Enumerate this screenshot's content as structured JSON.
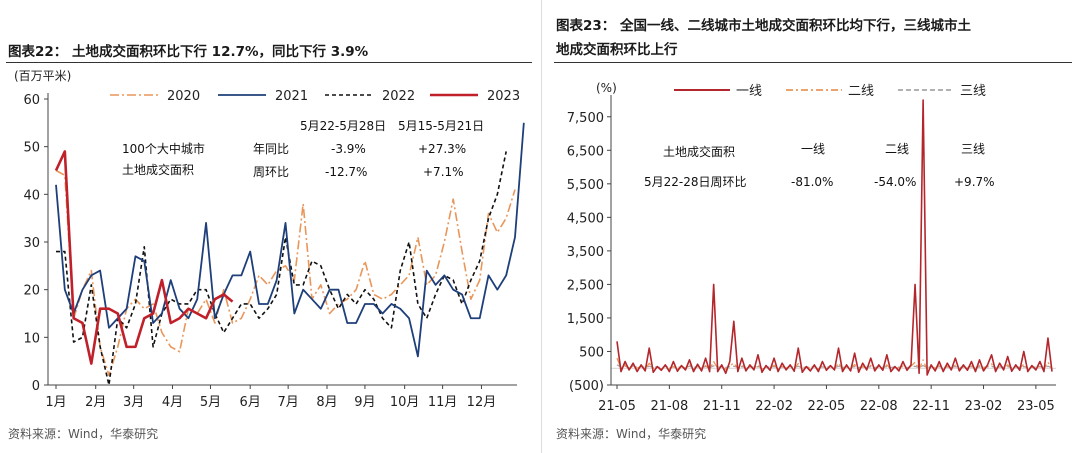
{
  "charts": [
    {
      "title": "图表22：  土地成交面积环比下行 12.7%，同比下行 3.9%",
      "source": "资料来源：Wind，华泰研究",
      "chart_data": {
        "type": "line",
        "ylabel": "(百万平米)",
        "ylim": [
          0,
          60
        ],
        "yticks": [
          0,
          10,
          20,
          30,
          40,
          50,
          60
        ],
        "x_tick_labels": [
          "1月",
          "2月",
          "3月",
          "4月",
          "5月",
          "6月",
          "7月",
          "8月",
          "9月",
          "10月",
          "11月",
          "12月"
        ],
        "x_index_range": [
          1,
          53
        ],
        "series": [
          {
            "name": "2020",
            "color": "#e9965a",
            "dash": "9,3,2,3",
            "width": 1.6,
            "values": [
              45,
              44,
              14,
              20,
              24,
              8,
              2,
              8,
              16,
              18,
              16,
              17,
              11,
              8,
              7,
              16,
              15,
              18,
              13,
              20,
              13,
              14,
              18,
              23,
              21,
              24,
              25,
              22,
              38,
              18,
              21,
              15,
              17,
              18,
              20,
              26,
              19,
              18,
              19,
              21,
              23,
              31,
              21,
              23,
              30,
              39,
              28,
              18,
              22,
              36,
              32,
              35,
              41
            ]
          },
          {
            "name": "2021",
            "color": "#1e3f7a",
            "dash": "",
            "width": 1.8,
            "values": [
              42,
              20,
              15,
              20,
              23,
              24,
              12,
              14,
              16,
              27,
              26,
              13,
              15,
              22,
              16,
              14,
              18,
              34,
              14,
              19,
              23,
              23,
              28,
              17,
              17,
              22,
              34,
              15,
              20,
              18,
              16,
              20,
              20,
              13,
              13,
              17,
              17,
              15,
              17,
              16,
              14,
              6,
              24,
              21,
              23,
              20,
              19,
              14,
              14,
              23,
              20,
              23,
              31,
              55
            ]
          },
          {
            "name": "2022",
            "color": "#111111",
            "dash": "4,3",
            "width": 1.6,
            "values": [
              28,
              28,
              9,
              10,
              21,
              8,
              0,
              14,
              12,
              17,
              29,
              8,
              15,
              18,
              17,
              17,
              20,
              20,
              15,
              11,
              14,
              17,
              17,
              14,
              16,
              19,
              31,
              21,
              21,
              26,
              25,
              20,
              16,
              19,
              17,
              20,
              18,
              14,
              12,
              24,
              30,
              17,
              14,
              19,
              23,
              22,
              17,
              22,
              26,
              35,
              40,
              49
            ]
          },
          {
            "name": "2023",
            "color": "#c0202a",
            "dash": "",
            "width": 2.6,
            "values": [
              45,
              49,
              14,
              13,
              4.5,
              16,
              16,
              15,
              8,
              8,
              14,
              15,
              22,
              13,
              14,
              16,
              15,
              14,
              18,
              19,
              17.5
            ]
          }
        ]
      },
      "table": {
        "row_label_1": "100个大中城市",
        "row_label_2": "土地成交面积",
        "header_1": "5月22-5月28日",
        "header_2": "5月15-5月21日",
        "rows": [
          {
            "label": "年同比",
            "v1": "-3.9%",
            "v2": "+27.3%"
          },
          {
            "label": "周环比",
            "v1": "-12.7%",
            "v2": "+7.1%"
          }
        ]
      }
    },
    {
      "title_line1": "图表23：  全国一线、二线城市土地成交面积环比均下行，三线城市土",
      "title_line2": "地成交面积环比上行",
      "source": "资料来源：Wind，华泰研究",
      "chart_data": {
        "type": "line",
        "ylabel": "(%)",
        "ylim": [
          -500,
          8000
        ],
        "yticks": [
          -500,
          500,
          1500,
          2500,
          3500,
          4500,
          5500,
          6500,
          7500
        ],
        "ytick_labels": [
          "(500)",
          "500",
          "1,500",
          "2,500",
          "3,500",
          "4,500",
          "5,500",
          "6,500",
          "7,500"
        ],
        "x_tick_labels": [
          "21-05",
          "21-08",
          "21-11",
          "22-02",
          "22-05",
          "22-08",
          "22-11",
          "23-02",
          "23-05"
        ],
        "x_index_range": [
          0,
          108
        ],
        "series": [
          {
            "name": "一线",
            "color": "#b3262c",
            "dash": "",
            "width": 1.6,
            "values": [
              800,
              -100,
              200,
              -50,
              150,
              -100,
              100,
              -80,
              600,
              -120,
              50,
              -60,
              100,
              -100,
              200,
              -90,
              80,
              -50,
              250,
              -100,
              120,
              -80,
              300,
              -100,
              2500,
              -100,
              100,
              -150,
              200,
              1400,
              -100,
              300,
              -80,
              100,
              -50,
              400,
              -120,
              80,
              -60,
              300,
              -100,
              150,
              -50,
              100,
              -90,
              600,
              -120,
              50,
              -80,
              100,
              -100,
              200,
              -60,
              80,
              -50,
              600,
              -100,
              100,
              -80,
              450,
              -120,
              150,
              -50,
              300,
              -80,
              100,
              -60,
              400,
              -100,
              50,
              -80,
              200,
              -60,
              100,
              2500,
              -150,
              8000,
              -200,
              100,
              -80,
              200,
              -100,
              150,
              -50,
              300,
              -80,
              100,
              -60,
              200,
              -100,
              250,
              -80,
              100,
              400,
              -100,
              150,
              -50,
              350,
              -90,
              100,
              -60,
              500,
              -100,
              80,
              -50,
              200,
              -100,
              900,
              -100
            ]
          },
          {
            "name": "二线",
            "color": "#e9965a",
            "dash": "7,3,2,3",
            "width": 1.3,
            "values": [
              300,
              0,
              100,
              -40,
              80,
              0,
              60,
              -30,
              150,
              0,
              40,
              -30,
              90,
              0,
              50,
              -20,
              60,
              0,
              120,
              -40,
              60,
              0,
              80,
              -30,
              200,
              0,
              60,
              -40,
              80,
              150,
              0,
              90,
              -20,
              50,
              0,
              100,
              -30,
              60,
              0,
              90,
              -30,
              50,
              0,
              70,
              -20,
              140,
              -40,
              40,
              0,
              60,
              -30,
              80,
              0,
              60,
              -20,
              150,
              -30,
              40,
              0,
              110,
              -40,
              50,
              0,
              90,
              -30,
              60,
              0,
              100,
              -40,
              40,
              0,
              70,
              -20,
              60,
              180,
              -40,
              250,
              -50,
              60,
              0,
              80,
              -30,
              60,
              0,
              90,
              -20,
              50,
              0,
              70,
              -30,
              80,
              0,
              60,
              130,
              -30,
              60,
              0,
              100,
              -20,
              50,
              0,
              120,
              -30,
              40,
              0,
              60,
              -20,
              180,
              -30
            ]
          },
          {
            "name": "三线",
            "color": "#a6a6a6",
            "dash": "5,3",
            "width": 1.3,
            "values": [
              100,
              40,
              60,
              20,
              70,
              30,
              50,
              20,
              60,
              30,
              40,
              20,
              60,
              30,
              40,
              20,
              50,
              30,
              60,
              20,
              50,
              30,
              50,
              20,
              70,
              30,
              40,
              20,
              50,
              60,
              30,
              50,
              20,
              40,
              30,
              50,
              20,
              40,
              30,
              50,
              20,
              40,
              30,
              50,
              20,
              60,
              20,
              40,
              30,
              50,
              20,
              40,
              30,
              50,
              20,
              60,
              20,
              40,
              30,
              50,
              20,
              40,
              30,
              50,
              20,
              40,
              30,
              50,
              20,
              40,
              30,
              50,
              20,
              40,
              60,
              20,
              80,
              20,
              40,
              30,
              50,
              20,
              40,
              30,
              50,
              20,
              40,
              30,
              50,
              20,
              40,
              30,
              40,
              60,
              20,
              40,
              30,
              50,
              20,
              40,
              30,
              50,
              20,
              40,
              30,
              50,
              20,
              60,
              20
            ]
          }
        ]
      },
      "table": {
        "header_label": "土地成交面积",
        "col_1": "一线",
        "col_2": "二线",
        "col_3": "三线",
        "row_label": "5月22-28日周环比",
        "v1": "-81.0%",
        "v2": "-54.0%",
        "v3": "+9.7%"
      }
    }
  ]
}
